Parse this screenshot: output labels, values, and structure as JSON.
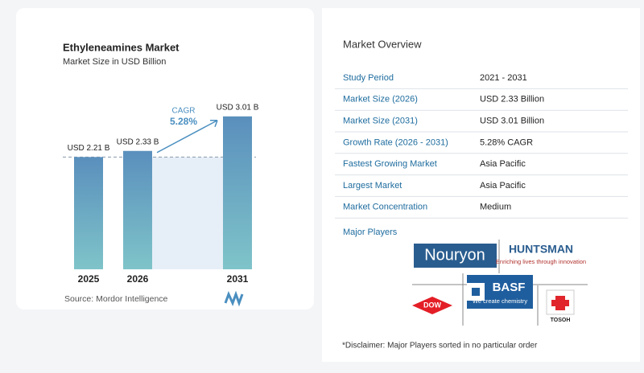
{
  "chart_data": {
    "type": "bar",
    "title": "Ethyleneamines Market",
    "subtitle": "Market Size in USD Billion",
    "categories": [
      "2025",
      "2026",
      "2031"
    ],
    "values": [
      2.21,
      2.33,
      3.01
    ],
    "value_labels": [
      "USD 2.21 B",
      "USD 2.33 B",
      "USD 3.01 B"
    ],
    "cagr_label": "CAGR",
    "cagr_value": "5.28%",
    "source": "Source:  Mordor Intelligence"
  },
  "overview": {
    "title": "Market Overview",
    "rows": [
      [
        "Study Period",
        "2021 - 2031"
      ],
      [
        "Market Size (2026)",
        "USD 2.33 Billion"
      ],
      [
        "Market Size (2031)",
        "USD 3.01 Billion"
      ],
      [
        "Growth Rate (2026 - 2031)",
        "5.28% CAGR"
      ],
      [
        "Fastest Growing Market",
        "Asia Pacific"
      ],
      [
        "Largest Market",
        "Asia Pacific"
      ],
      [
        "Market Concentration",
        "Medium"
      ]
    ],
    "players_title": "Major Players",
    "players": [
      "Nouryon",
      "HUNTSMAN",
      "Enriching lives through innovation",
      "DOW",
      "BASF",
      "We create chemistry",
      "TOSOH"
    ],
    "disclaimer": "*Disclaimer: Major Players sorted in no particular order"
  }
}
